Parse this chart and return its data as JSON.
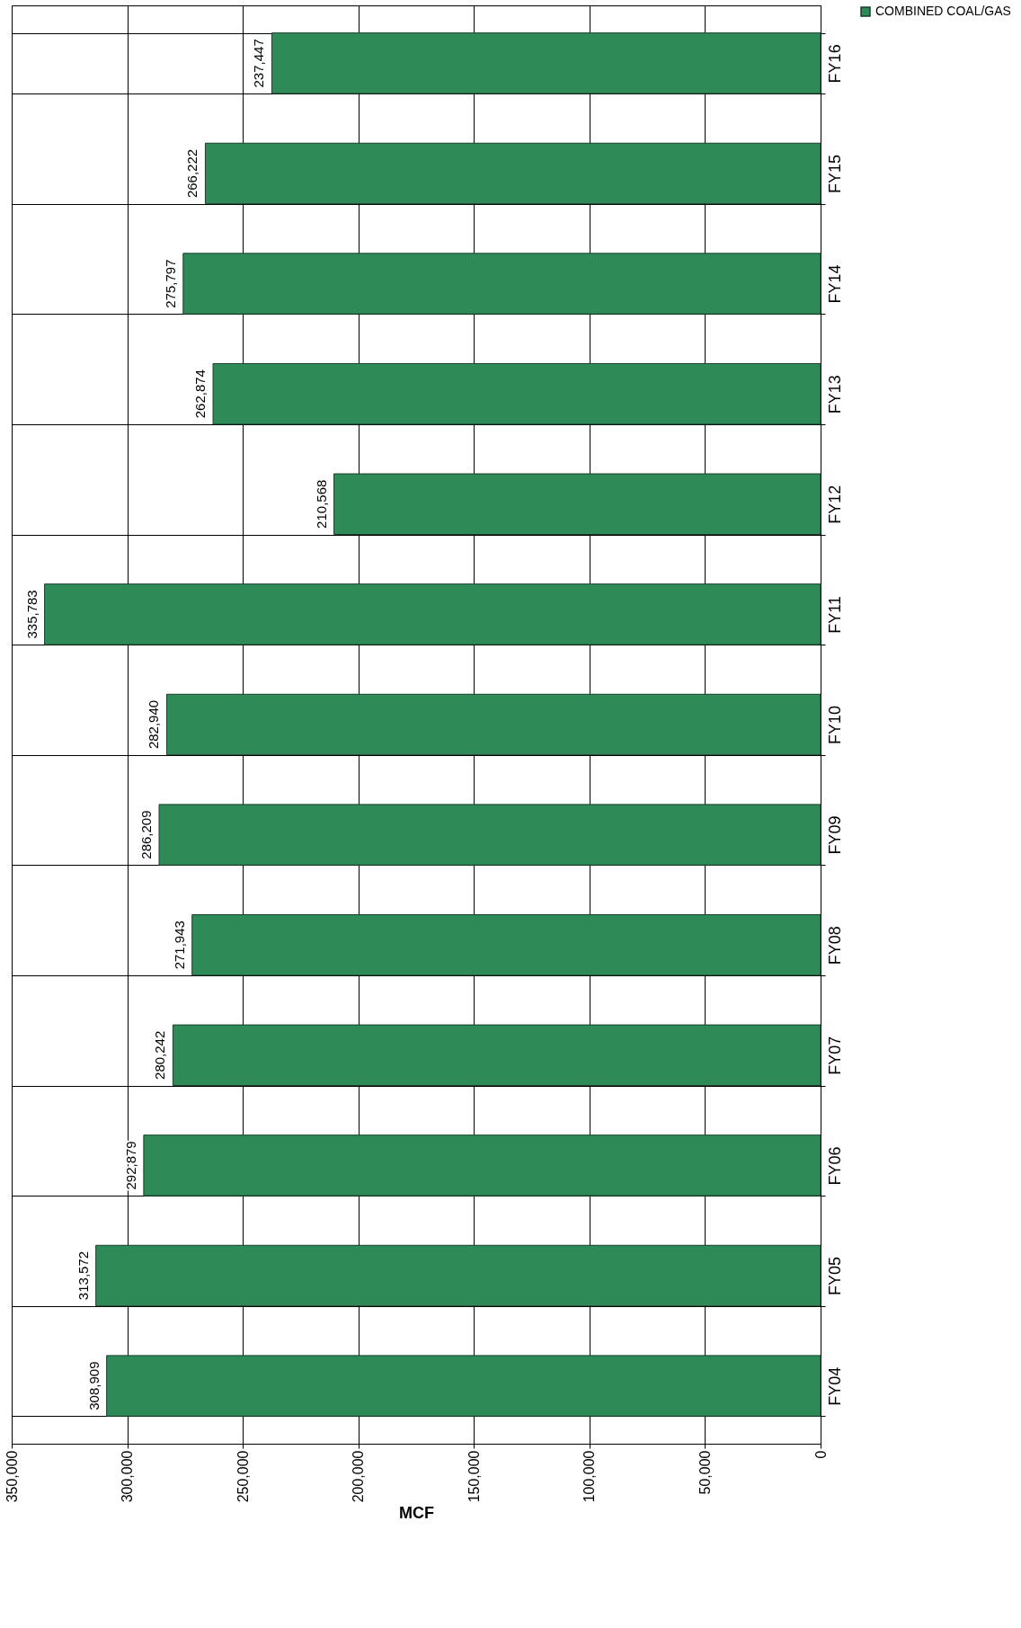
{
  "chart_data": {
    "type": "bar",
    "orientation": "horizontal",
    "xlabel": "MCF",
    "categories": [
      "FY16",
      "FY15",
      "FY14",
      "FY13",
      "FY12",
      "FY11",
      "FY10",
      "FY09",
      "FY08",
      "FY07",
      "FY06",
      "FY05",
      "FY04"
    ],
    "series": [
      {
        "name": "COMBINED COAL/GAS",
        "color": "#2e8b57",
        "values": [
          237447,
          266222,
          275797,
          262874,
          210568,
          335783,
          282940,
          286209,
          271943,
          280242,
          292879,
          313572,
          308909
        ]
      }
    ],
    "value_labels": [
      "237,447",
      "266,222",
      "275,797",
      "262,874",
      "210,568",
      "335,783",
      "282,940",
      "286,209",
      "271,943",
      "280,242",
      "292,879",
      "313,572",
      "308,909"
    ],
    "xlim": [
      350000,
      0
    ],
    "xticks": [
      {
        "value": 350000,
        "label": "350,000"
      },
      {
        "value": 300000,
        "label": "300,000"
      },
      {
        "value": 250000,
        "label": "250,000"
      },
      {
        "value": 200000,
        "label": "200,000"
      },
      {
        "value": 150000,
        "label": "150,000"
      },
      {
        "value": 100000,
        "label": "100,000"
      },
      {
        "value": 50000,
        "label": "50,000"
      },
      0
    ],
    "grid": true,
    "legend": "right"
  }
}
